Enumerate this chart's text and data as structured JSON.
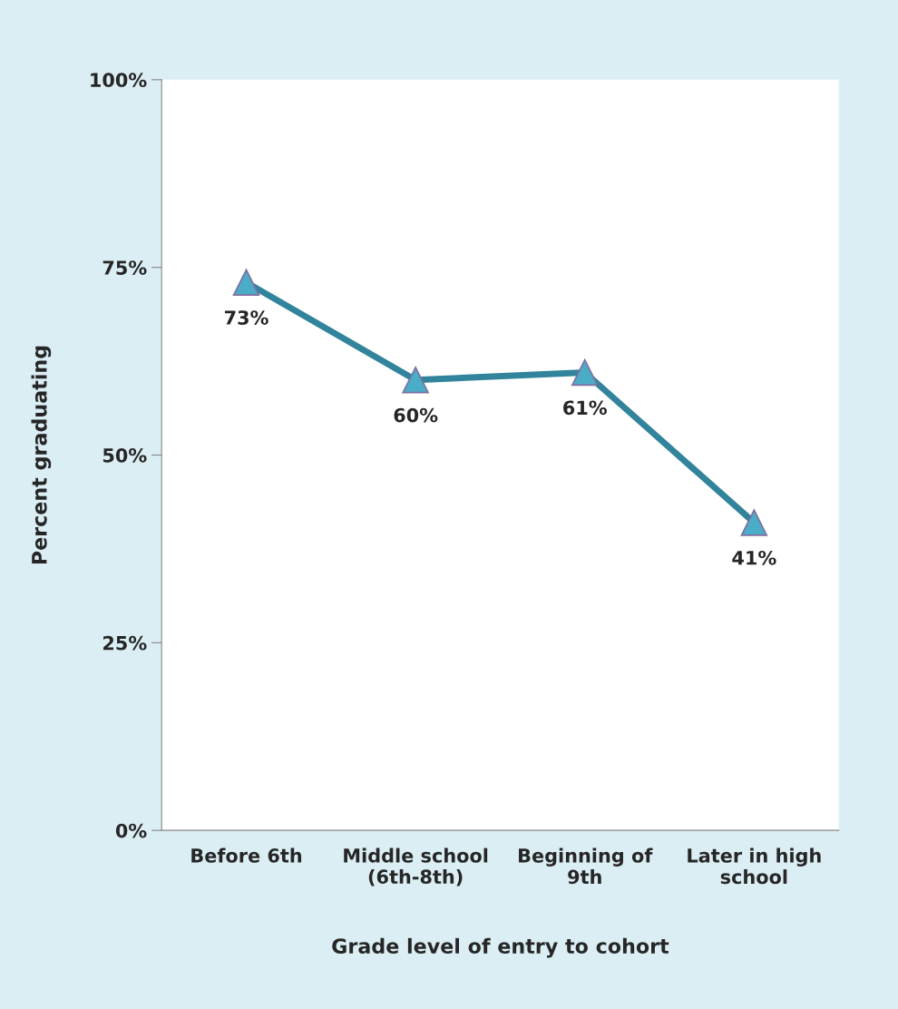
{
  "chart_data": {
    "type": "line",
    "xlabel": "Grade level of entry to cohort",
    "ylabel": "Percent graduating",
    "categories": [
      "Before 6th",
      "Middle school\n(6th-8th)",
      "Beginning of\n9th",
      "Later in high\nschool"
    ],
    "series": [
      {
        "color": "#31849b",
        "values": [
          73,
          60,
          61,
          41
        ],
        "value_labels": [
          "73%",
          "60%",
          "61%",
          "41%"
        ]
      }
    ],
    "ylim": [
      0,
      100
    ],
    "yticks": [
      {
        "value": 0,
        "label": "0%"
      },
      {
        "value": 25,
        "label": "25%"
      },
      {
        "value": 50,
        "label": "50%"
      },
      {
        "value": 75,
        "label": "75%"
      },
      {
        "value": 100,
        "label": "100%"
      }
    ],
    "marker": "triangle",
    "line_style": "solid",
    "grid": false,
    "legend": false
  }
}
